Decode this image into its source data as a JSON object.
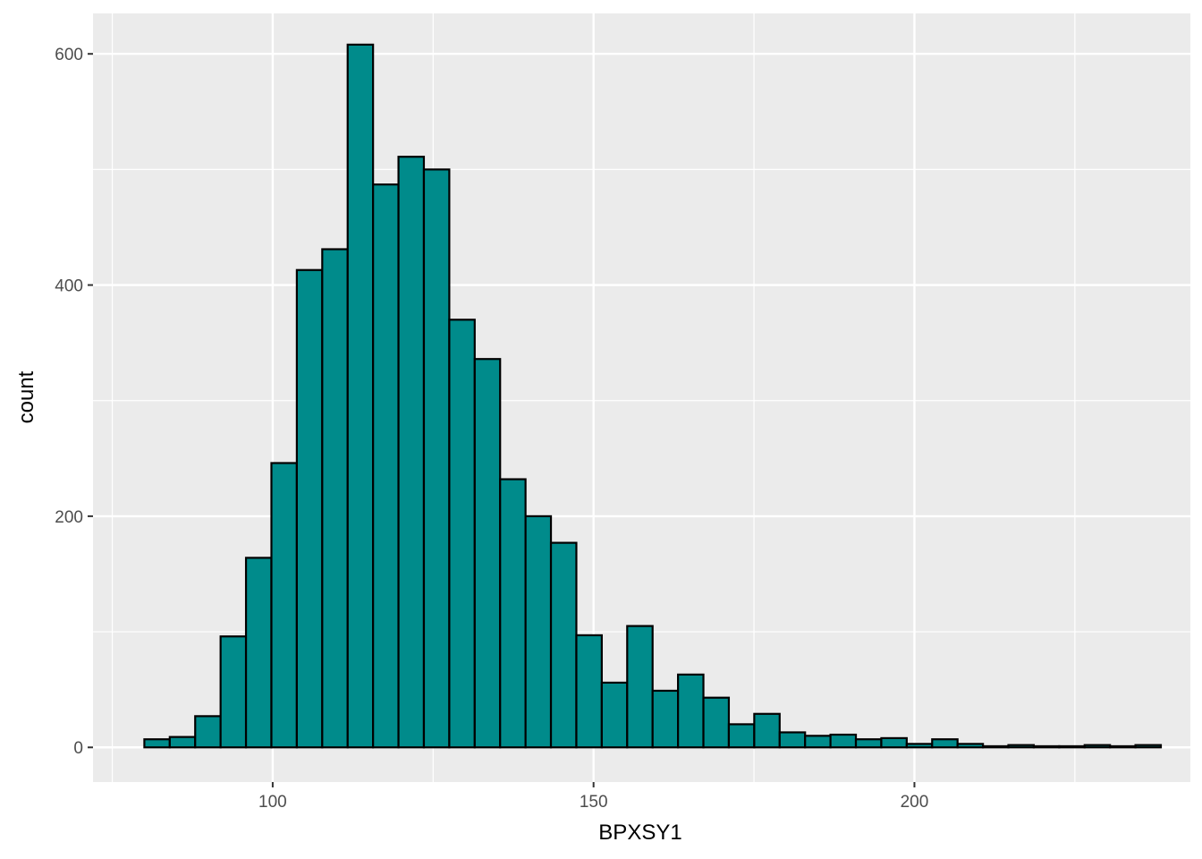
{
  "chart_data": {
    "type": "bar",
    "subtype": "histogram",
    "title": "",
    "xlabel": "BPXSY1",
    "ylabel": "count",
    "xlim": [
      72,
      243
    ],
    "ylim": [
      -30,
      635
    ],
    "x_ticks": [
      100,
      150,
      200
    ],
    "x_minor_ticks": [
      75,
      125,
      175,
      225
    ],
    "y_ticks": [
      0,
      200,
      400,
      600
    ],
    "y_minor_ticks": [
      100,
      300,
      500
    ],
    "x_tick_labels": [
      "100",
      "150",
      "200"
    ],
    "y_tick_labels": [
      "0",
      "200",
      "400",
      "600"
    ],
    "bin_width": 3.96,
    "bin_start": 80.0,
    "values": [
      7,
      9,
      27,
      96,
      164,
      246,
      413,
      431,
      608,
      487,
      511,
      500,
      370,
      336,
      232,
      200,
      177,
      97,
      56,
      105,
      49,
      63,
      43,
      20,
      29,
      13,
      10,
      11,
      7,
      8,
      3,
      7,
      3,
      1,
      2,
      1,
      1,
      2,
      1,
      2
    ],
    "grid": true,
    "legend": "none",
    "fill_color": "#008b8b",
    "edge_color": "#000000",
    "panel_background": "#ebebeb"
  }
}
